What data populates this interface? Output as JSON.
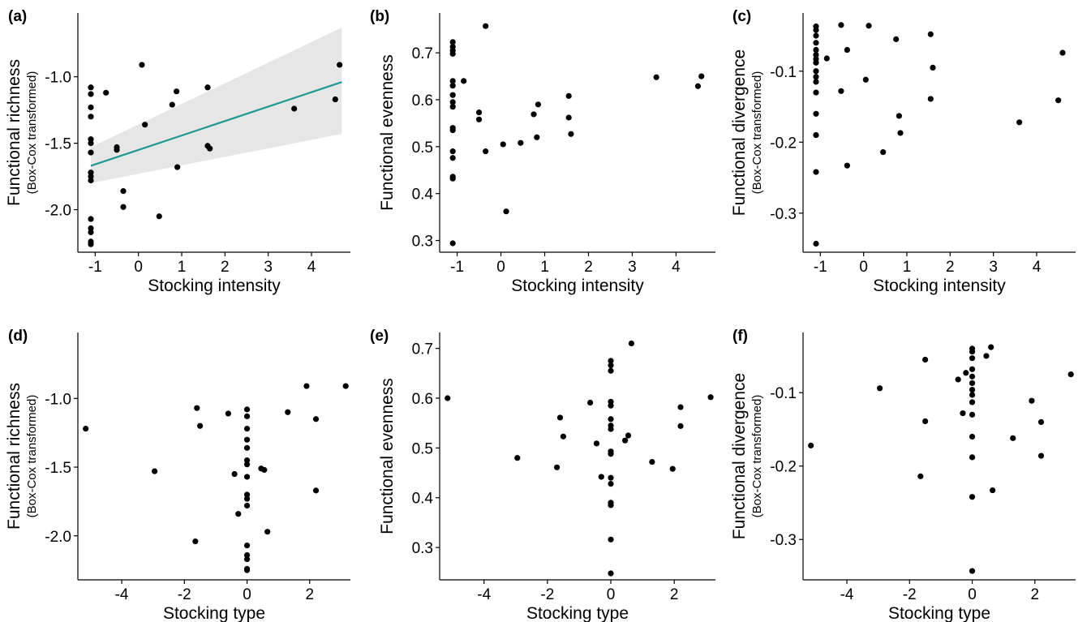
{
  "chart_data": [
    {
      "panel": "(a)",
      "type": "scatter",
      "xlabel": "Stocking intensity",
      "ylabel": "Functional richness",
      "ylabel_sub": "(Box-Cox transformed)",
      "xlim": [
        -1.4,
        4.9
      ],
      "ylim": [
        -2.32,
        -0.52
      ],
      "xticks": [
        -1,
        0,
        1,
        2,
        3,
        4
      ],
      "yticks": [
        -1.0,
        -1.5,
        -2.0
      ],
      "points": [
        [
          -1.1,
          -1.08
        ],
        [
          -1.1,
          -1.13
        ],
        [
          -1.1,
          -1.23
        ],
        [
          -1.1,
          -1.3
        ],
        [
          -1.1,
          -1.47
        ],
        [
          -1.1,
          -1.5
        ],
        [
          -1.1,
          -1.57
        ],
        [
          -1.1,
          -1.72
        ],
        [
          -1.1,
          -1.75
        ],
        [
          -1.1,
          -1.78
        ],
        [
          -1.1,
          -2.07
        ],
        [
          -1.1,
          -2.14
        ],
        [
          -1.1,
          -2.17
        ],
        [
          -1.1,
          -2.24
        ],
        [
          -1.1,
          -2.26
        ],
        [
          -0.75,
          -1.12
        ],
        [
          -0.5,
          -1.53
        ],
        [
          -0.5,
          -1.55
        ],
        [
          -0.35,
          -1.86
        ],
        [
          -0.35,
          -1.98
        ],
        [
          0.08,
          -0.91
        ],
        [
          0.15,
          -1.36
        ],
        [
          0.48,
          -2.05
        ],
        [
          0.78,
          -1.21
        ],
        [
          0.88,
          -1.11
        ],
        [
          0.9,
          -1.68
        ],
        [
          1.6,
          -1.08
        ],
        [
          1.6,
          -1.52
        ],
        [
          1.65,
          -1.54
        ],
        [
          3.6,
          -1.24
        ],
        [
          4.55,
          -1.17
        ],
        [
          4.65,
          -0.91
        ]
      ],
      "trend": {
        "color": "#1f9a8f",
        "band_color": "#e6e6e6",
        "x": [
          -1.1,
          4.7
        ],
        "y": [
          -1.67,
          -1.04
        ],
        "lower": [
          -1.8,
          -1.43
        ],
        "upper": [
          -1.53,
          -0.63
        ]
      }
    },
    {
      "panel": "(b)",
      "type": "scatter",
      "xlabel": "Stocking intensity",
      "ylabel": "Functional evenness",
      "ylabel_sub": "",
      "xlim": [
        -1.4,
        4.9
      ],
      "ylim": [
        0.275,
        0.785
      ],
      "xticks": [
        -1,
        0,
        1,
        2,
        3,
        4
      ],
      "yticks": [
        0.3,
        0.4,
        0.5,
        0.6,
        0.7
      ],
      "points": [
        [
          -1.1,
          0.723
        ],
        [
          -1.1,
          0.713
        ],
        [
          -1.1,
          0.705
        ],
        [
          -1.1,
          0.698
        ],
        [
          -1.1,
          0.64
        ],
        [
          -1.1,
          0.63
        ],
        [
          -1.1,
          0.61
        ],
        [
          -1.1,
          0.595
        ],
        [
          -1.1,
          0.585
        ],
        [
          -1.1,
          0.54
        ],
        [
          -1.1,
          0.535
        ],
        [
          -1.1,
          0.49
        ],
        [
          -1.1,
          0.476
        ],
        [
          -1.1,
          0.436
        ],
        [
          -1.1,
          0.432
        ],
        [
          -1.1,
          0.294
        ],
        [
          -0.85,
          0.64
        ],
        [
          -0.5,
          0.573
        ],
        [
          -0.5,
          0.558
        ],
        [
          -0.35,
          0.757
        ],
        [
          -0.35,
          0.49
        ],
        [
          0.05,
          0.505
        ],
        [
          0.12,
          0.362
        ],
        [
          0.45,
          0.508
        ],
        [
          0.75,
          0.569
        ],
        [
          0.82,
          0.52
        ],
        [
          0.85,
          0.59
        ],
        [
          1.55,
          0.608
        ],
        [
          1.55,
          0.562
        ],
        [
          1.6,
          0.527
        ],
        [
          3.55,
          0.648
        ],
        [
          4.5,
          0.629
        ],
        [
          4.58,
          0.65
        ]
      ]
    },
    {
      "panel": "(c)",
      "type": "scatter",
      "xlabel": "Stocking intensity",
      "ylabel": "Functional divergence",
      "ylabel_sub": "(Box-Cox transformed)",
      "xlim": [
        -1.4,
        4.9
      ],
      "ylim": [
        -0.355,
        -0.018
      ],
      "xticks": [
        -1,
        0,
        1,
        2,
        3,
        4
      ],
      "yticks": [
        -0.1,
        -0.2,
        -0.3
      ],
      "points": [
        [
          -1.1,
          -0.037
        ],
        [
          -1.1,
          -0.042
        ],
        [
          -1.1,
          -0.05
        ],
        [
          -1.1,
          -0.06
        ],
        [
          -1.1,
          -0.07
        ],
        [
          -1.1,
          -0.077
        ],
        [
          -1.1,
          -0.083
        ],
        [
          -1.1,
          -0.088
        ],
        [
          -1.1,
          -0.1
        ],
        [
          -1.1,
          -0.108
        ],
        [
          -1.1,
          -0.115
        ],
        [
          -1.1,
          -0.13
        ],
        [
          -1.1,
          -0.16
        ],
        [
          -1.1,
          -0.19
        ],
        [
          -1.1,
          -0.242
        ],
        [
          -1.1,
          -0.343
        ],
        [
          -0.85,
          -0.082
        ],
        [
          -0.52,
          -0.035
        ],
        [
          -0.52,
          -0.128
        ],
        [
          -0.38,
          -0.07
        ],
        [
          -0.38,
          -0.233
        ],
        [
          0.05,
          -0.112
        ],
        [
          0.12,
          -0.036
        ],
        [
          0.45,
          -0.214
        ],
        [
          0.75,
          -0.055
        ],
        [
          0.82,
          -0.163
        ],
        [
          0.85,
          -0.187
        ],
        [
          1.55,
          -0.048
        ],
        [
          1.6,
          -0.095
        ],
        [
          1.55,
          -0.139
        ],
        [
          3.6,
          -0.172
        ],
        [
          4.5,
          -0.141
        ],
        [
          4.6,
          -0.074
        ]
      ]
    },
    {
      "panel": "(d)",
      "type": "scatter",
      "xlabel": "Stocking type",
      "ylabel": "Functional richness",
      "ylabel_sub": "(Box-Cox transformed)",
      "xlim": [
        -5.4,
        3.3
      ],
      "ylim": [
        -2.32,
        -0.52
      ],
      "xticks": [
        -4,
        -2,
        0,
        2
      ],
      "yticks": [
        -1.0,
        -1.5,
        -2.0
      ],
      "points": [
        [
          -5.15,
          -1.22
        ],
        [
          -2.95,
          -1.53
        ],
        [
          -1.65,
          -2.04
        ],
        [
          -1.6,
          -1.07
        ],
        [
          -1.5,
          -1.2
        ],
        [
          -0.6,
          -1.11
        ],
        [
          -0.4,
          -1.55
        ],
        [
          -0.28,
          -1.84
        ],
        [
          0,
          -1.08
        ],
        [
          0,
          -1.13
        ],
        [
          0,
          -1.22
        ],
        [
          0,
          -1.3
        ],
        [
          0,
          -1.36
        ],
        [
          0,
          -1.45
        ],
        [
          0,
          -1.48
        ],
        [
          0,
          -1.57
        ],
        [
          0,
          -1.7
        ],
        [
          0,
          -1.73
        ],
        [
          0,
          -1.78
        ],
        [
          0,
          -2.07
        ],
        [
          0,
          -2.14
        ],
        [
          0,
          -2.17
        ],
        [
          0,
          -2.24
        ],
        [
          0,
          -2.25
        ],
        [
          0.45,
          -1.51
        ],
        [
          0.55,
          -1.52
        ],
        [
          0.65,
          -1.97
        ],
        [
          1.3,
          -1.1
        ],
        [
          1.9,
          -0.91
        ],
        [
          2.2,
          -1.15
        ],
        [
          2.2,
          -1.67
        ],
        [
          3.15,
          -0.91
        ]
      ]
    },
    {
      "panel": "(e)",
      "type": "scatter",
      "xlabel": "Stocking type",
      "ylabel": "Functional evenness",
      "ylabel_sub": "",
      "xlim": [
        -5.4,
        3.3
      ],
      "ylim": [
        0.235,
        0.732
      ],
      "xticks": [
        -4,
        -2,
        0,
        2
      ],
      "yticks": [
        0.3,
        0.4,
        0.5,
        0.6,
        0.7
      ],
      "points": [
        [
          -5.15,
          0.6
        ],
        [
          -2.95,
          0.48
        ],
        [
          -1.7,
          0.461
        ],
        [
          -1.6,
          0.561
        ],
        [
          -1.5,
          0.523
        ],
        [
          -0.65,
          0.591
        ],
        [
          -0.45,
          0.509
        ],
        [
          -0.3,
          0.442
        ],
        [
          0,
          0.675
        ],
        [
          0,
          0.666
        ],
        [
          0,
          0.655
        ],
        [
          0,
          0.593
        ],
        [
          0,
          0.585
        ],
        [
          0,
          0.558
        ],
        [
          0,
          0.545
        ],
        [
          0,
          0.538
        ],
        [
          0,
          0.493
        ],
        [
          0,
          0.488
        ],
        [
          0,
          0.44
        ],
        [
          0,
          0.428
        ],
        [
          0,
          0.39
        ],
        [
          0,
          0.385
        ],
        [
          0,
          0.316
        ],
        [
          0,
          0.248
        ],
        [
          0.45,
          0.515
        ],
        [
          0.55,
          0.525
        ],
        [
          0.65,
          0.71
        ],
        [
          1.3,
          0.472
        ],
        [
          1.95,
          0.458
        ],
        [
          2.2,
          0.582
        ],
        [
          2.2,
          0.544
        ],
        [
          3.15,
          0.602
        ]
      ]
    },
    {
      "panel": "(f)",
      "type": "scatter",
      "xlabel": "Stocking type",
      "ylabel": "Functional divergence",
      "ylabel_sub": "(Box-Cox transformed)",
      "xlim": [
        -5.4,
        3.3
      ],
      "ylim": [
        -0.355,
        -0.018
      ],
      "xticks": [
        -4,
        -2,
        0,
        2
      ],
      "yticks": [
        -0.1,
        -0.2,
        -0.3
      ],
      "points": [
        [
          -5.15,
          -0.172
        ],
        [
          -2.95,
          -0.094
        ],
        [
          -1.65,
          -0.214
        ],
        [
          -1.5,
          -0.055
        ],
        [
          -1.5,
          -0.139
        ],
        [
          -0.45,
          -0.082
        ],
        [
          -0.3,
          -0.128
        ],
        [
          -0.2,
          -0.073
        ],
        [
          0,
          -0.04
        ],
        [
          0,
          -0.044
        ],
        [
          0,
          -0.053
        ],
        [
          0,
          -0.068
        ],
        [
          0,
          -0.078
        ],
        [
          0,
          -0.087
        ],
        [
          0,
          -0.096
        ],
        [
          0,
          -0.103
        ],
        [
          0,
          -0.113
        ],
        [
          0,
          -0.13
        ],
        [
          0,
          -0.16
        ],
        [
          0,
          -0.188
        ],
        [
          0,
          -0.242
        ],
        [
          0,
          -0.343
        ],
        [
          0.45,
          -0.05
        ],
        [
          0.6,
          -0.038
        ],
        [
          0.65,
          -0.233
        ],
        [
          1.3,
          -0.162
        ],
        [
          1.9,
          -0.111
        ],
        [
          2.2,
          -0.14
        ],
        [
          2.2,
          -0.186
        ],
        [
          3.15,
          -0.075
        ]
      ]
    }
  ]
}
